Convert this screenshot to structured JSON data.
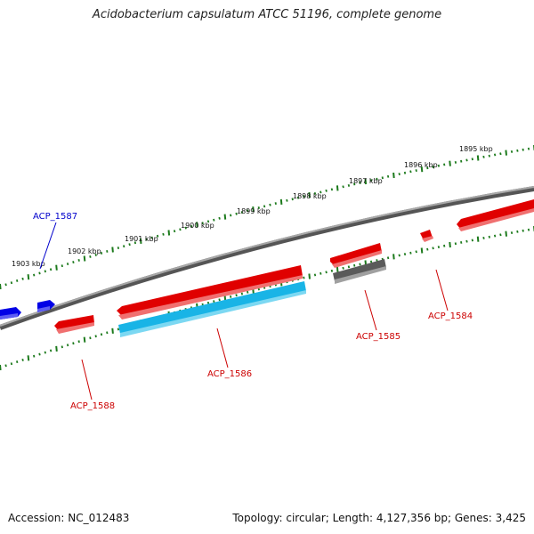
{
  "title": "Acidobacterium capsulatum ATCC 51196, complete genome",
  "footer": {
    "accession": "Accession: NC_012483",
    "stats": "Topology: circular; Length: 4,127,356 bp; Genes: 3,425"
  },
  "colors": {
    "backbone": "#808080",
    "tick": "#1c7a1c",
    "gene_red": "#e00000",
    "gene_blue": "#0000e6",
    "gene_cyan": "#19b4e6",
    "gene_gray": "#5a5a5a",
    "label_red": "#cc0000",
    "label_blue": "#0000cc"
  },
  "scale_labels": [
    "1895 kbp",
    "1896 kbp",
    "1897 kbp",
    "1898 kbp",
    "1899 kbp",
    "1900 kbp",
    "1901 kbp",
    "1902 kbp",
    "1903 kbp"
  ],
  "gene_labels": {
    "acp_1584": "ACP_1584",
    "acp_1585": "ACP_1585",
    "acp_1586": "ACP_1586",
    "acp_1587": "ACP_1587",
    "acp_1588": "ACP_1588"
  }
}
